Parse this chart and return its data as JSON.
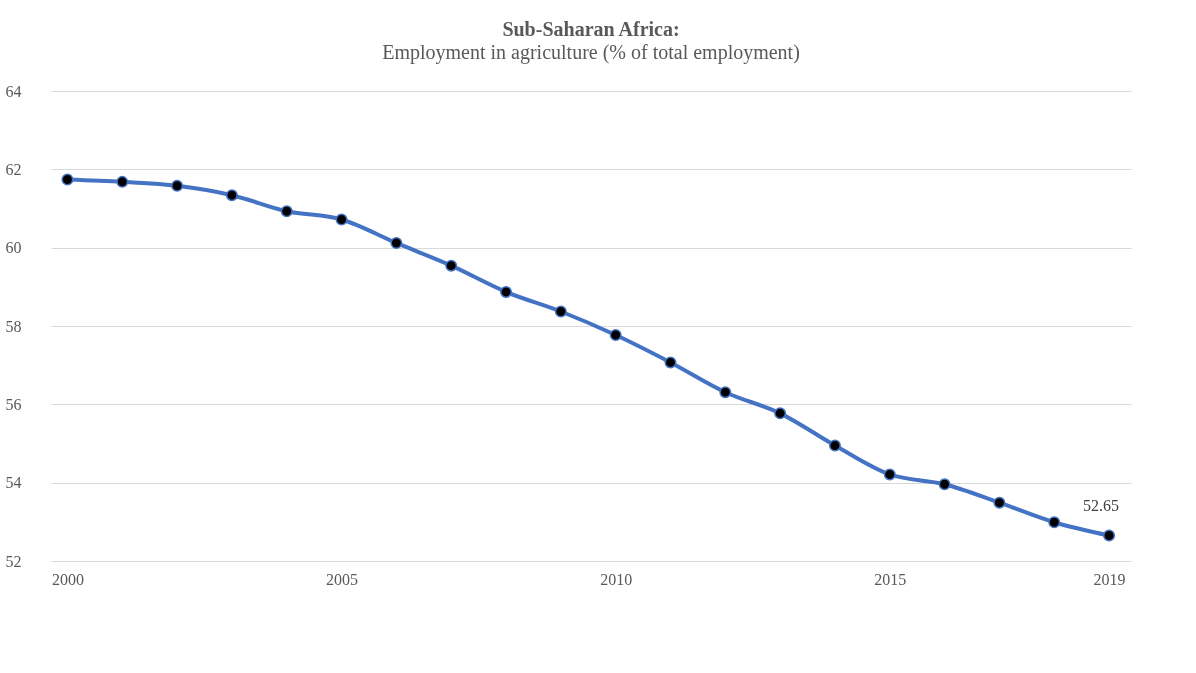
{
  "chart_data": {
    "type": "line",
    "title": "Sub-Saharan Africa:",
    "subtitle": "Employment in agriculture (% of total employment)",
    "x": [
      2000,
      2001,
      2002,
      2003,
      2004,
      2005,
      2006,
      2007,
      2008,
      2009,
      2010,
      2011,
      2012,
      2013,
      2014,
      2015,
      2016,
      2017,
      2018,
      2019
    ],
    "series": [
      {
        "color": "#4472c4",
        "values": [
          61.74,
          61.68,
          61.58,
          61.34,
          60.93,
          60.72,
          60.12,
          59.54,
          58.87,
          58.37,
          57.77,
          57.07,
          56.31,
          55.77,
          54.95,
          54.21,
          53.96,
          53.49,
          52.99,
          52.65
        ]
      }
    ],
    "xlim": [
      1999.7,
      2019.4
    ],
    "xticks": [
      2000,
      2005,
      2010,
      2015,
      2019
    ],
    "ylim": [
      52,
      64
    ],
    "yticks": [
      52,
      54,
      56,
      58,
      60,
      62,
      64
    ],
    "grid": "y",
    "marker": "circle",
    "line_style": "solid",
    "legend": false,
    "annotations": [
      {
        "text": "52.65",
        "x": 2019,
        "y": 52.65
      }
    ]
  }
}
